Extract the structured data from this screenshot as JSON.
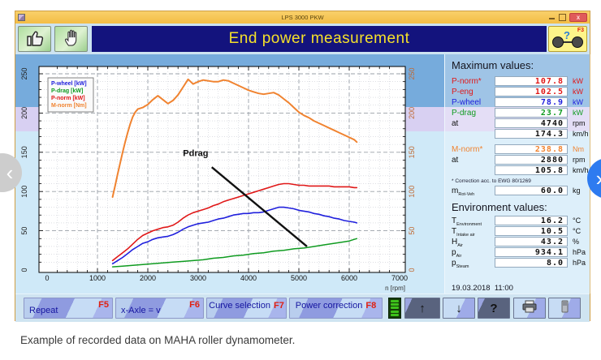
{
  "window": {
    "titlebar": {
      "title": "LPS 3000 PKW",
      "close_glyph": "x"
    },
    "header": {
      "title": "End power measurement",
      "f3_key": "F3",
      "f3_help_glyph": "?"
    }
  },
  "max_values": {
    "title": "Maximum values:",
    "rows": [
      {
        "label": "P-norm*",
        "value": "107.8",
        "unit": "kW",
        "color": "red"
      },
      {
        "label": "P-eng",
        "value": "102.5",
        "unit": "kW",
        "color": "red"
      },
      {
        "label": "P-wheel",
        "value": "78.9",
        "unit": "kW",
        "color": "blue"
      },
      {
        "label": "P-drag",
        "value": "23.7",
        "unit": "kW",
        "color": "green"
      },
      {
        "label": "at",
        "value": "4740",
        "unit": "rpm",
        "color": "black"
      },
      {
        "label": "",
        "value": "174.3",
        "unit": "km/h",
        "color": "black"
      },
      {
        "label": "M-norm*",
        "value": "238.8",
        "unit": "Nm",
        "color": "orange"
      },
      {
        "label": "at",
        "value": "2880",
        "unit": "rpm",
        "color": "black"
      },
      {
        "label": "",
        "value": "105.8",
        "unit": "km/h",
        "color": "black"
      },
      {
        "label": "m",
        "sub": "Rot-Veh",
        "value": "60.0",
        "unit": "kg",
        "color": "black"
      }
    ],
    "correction_note": "* Correction acc. to EWG 80/1269"
  },
  "environment": {
    "title": "Environment values:",
    "rows": [
      {
        "label": "T",
        "sub": "Environment",
        "value": "16.2",
        "unit": "°C",
        "color": "black"
      },
      {
        "label": "T",
        "sub": "Intake air",
        "value": "10.5",
        "unit": "°C",
        "color": "black"
      },
      {
        "label": "H",
        "sub": "Air",
        "value": "43.2",
        "unit": "%",
        "color": "black"
      },
      {
        "label": "p",
        "sub": "Air",
        "value": "934.1",
        "unit": "hPa",
        "color": "black"
      },
      {
        "label": "p",
        "sub": "Steam",
        "value": "8.0",
        "unit": "hPa",
        "color": "black"
      }
    ],
    "datetime": "19.03.2018  11:00"
  },
  "toolbar": {
    "buttons": [
      {
        "label": "Repeat",
        "fkey": "F5"
      },
      {
        "label": "x-Axle = v",
        "fkey": "F6"
      },
      {
        "label": "Curve selection",
        "fkey": "F7"
      },
      {
        "label": "Power correction",
        "fkey": "F8"
      }
    ],
    "nav": {
      "up": "↑",
      "down": "↓",
      "help": "?"
    }
  },
  "caption": "Example of recorded data on MAHA roller dynamometer.",
  "colors": {
    "band_top": "#76abdc",
    "band_mid": "#d8d0f2",
    "band_bottom": "#cfe9f8",
    "banner_bg": "#13137d",
    "banner_text": "#f5e12a",
    "p_wheel": "#2020dd",
    "p_drag": "#0f9b20",
    "p_norm": "#e01818",
    "m_norm": "#f08330",
    "right_axis_text": "#c06a35"
  },
  "chart_data": {
    "type": "line",
    "xlabel": "n [rpm]",
    "xlim": [
      0,
      7000
    ],
    "ylim": [
      0,
      250
    ],
    "x_ticks": [
      0,
      1000,
      2000,
      3000,
      4000,
      5000,
      6000,
      7000
    ],
    "y_ticks": [
      0,
      50,
      100,
      150,
      200,
      250
    ],
    "y2_ticks": [
      0,
      50,
      100,
      150,
      200,
      250
    ],
    "grid": true,
    "legend_position": "top-left",
    "annotation": {
      "text": "Pdrag",
      "text_at": [
        2950,
        145
      ],
      "line_from": [
        3270,
        131
      ],
      "line_to": [
        5160,
        30
      ]
    },
    "series": [
      {
        "name": "P-wheel [kW]",
        "color": "#2020dd",
        "width": 1.6,
        "points": [
          [
            1300,
            8
          ],
          [
            1400,
            12
          ],
          [
            1500,
            16
          ],
          [
            1600,
            21
          ],
          [
            1700,
            26
          ],
          [
            1800,
            30
          ],
          [
            1900,
            34
          ],
          [
            2000,
            36
          ],
          [
            2100,
            39
          ],
          [
            2200,
            41
          ],
          [
            2300,
            42
          ],
          [
            2400,
            43
          ],
          [
            2500,
            45
          ],
          [
            2600,
            48
          ],
          [
            2700,
            52
          ],
          [
            2800,
            55
          ],
          [
            2900,
            57
          ],
          [
            3000,
            59
          ],
          [
            3100,
            60
          ],
          [
            3200,
            61
          ],
          [
            3300,
            63
          ],
          [
            3400,
            65
          ],
          [
            3500,
            66
          ],
          [
            3600,
            68
          ],
          [
            3700,
            70
          ],
          [
            3800,
            71
          ],
          [
            3900,
            72
          ],
          [
            4000,
            72
          ],
          [
            4100,
            73
          ],
          [
            4200,
            73
          ],
          [
            4300,
            74
          ],
          [
            4400,
            76
          ],
          [
            4500,
            78
          ],
          [
            4600,
            80
          ],
          [
            4700,
            80
          ],
          [
            4800,
            79
          ],
          [
            4900,
            78
          ],
          [
            5000,
            76
          ],
          [
            5100,
            75
          ],
          [
            5200,
            74
          ],
          [
            5300,
            72
          ],
          [
            5400,
            71
          ],
          [
            5500,
            69
          ],
          [
            5600,
            68
          ],
          [
            5700,
            66
          ],
          [
            5800,
            65
          ],
          [
            5900,
            63
          ],
          [
            6000,
            62
          ],
          [
            6100,
            61
          ],
          [
            6150,
            60
          ]
        ]
      },
      {
        "name": "P-drag [kW]",
        "color": "#0f9b20",
        "width": 1.5,
        "points": [
          [
            1300,
            4
          ],
          [
            1500,
            5
          ],
          [
            1700,
            6
          ],
          [
            1900,
            7
          ],
          [
            2100,
            8
          ],
          [
            2300,
            9
          ],
          [
            2500,
            10
          ],
          [
            2700,
            11
          ],
          [
            2900,
            12
          ],
          [
            3100,
            13
          ],
          [
            3300,
            15
          ],
          [
            3500,
            16
          ],
          [
            3700,
            18
          ],
          [
            3900,
            19
          ],
          [
            4100,
            21
          ],
          [
            4300,
            22
          ],
          [
            4500,
            24
          ],
          [
            4700,
            25
          ],
          [
            4900,
            27
          ],
          [
            5100,
            28
          ],
          [
            5300,
            30
          ],
          [
            5500,
            32
          ],
          [
            5700,
            34
          ],
          [
            5900,
            36
          ],
          [
            6000,
            37
          ],
          [
            6100,
            39
          ],
          [
            6150,
            40
          ]
        ]
      },
      {
        "name": "P-norm [kW]",
        "color": "#e01818",
        "width": 1.6,
        "points": [
          [
            1300,
            12
          ],
          [
            1400,
            17
          ],
          [
            1500,
            22
          ],
          [
            1600,
            27
          ],
          [
            1700,
            33
          ],
          [
            1800,
            39
          ],
          [
            1900,
            44
          ],
          [
            2000,
            47
          ],
          [
            2100,
            50
          ],
          [
            2200,
            52
          ],
          [
            2300,
            54
          ],
          [
            2400,
            55
          ],
          [
            2500,
            57
          ],
          [
            2600,
            61
          ],
          [
            2700,
            66
          ],
          [
            2800,
            70
          ],
          [
            2900,
            73
          ],
          [
            3000,
            75
          ],
          [
            3100,
            77
          ],
          [
            3200,
            79
          ],
          [
            3300,
            82
          ],
          [
            3400,
            84
          ],
          [
            3500,
            87
          ],
          [
            3600,
            89
          ],
          [
            3700,
            91
          ],
          [
            3800,
            93
          ],
          [
            3900,
            95
          ],
          [
            4000,
            97
          ],
          [
            4100,
            99
          ],
          [
            4200,
            101
          ],
          [
            4300,
            103
          ],
          [
            4400,
            105
          ],
          [
            4500,
            107
          ],
          [
            4600,
            109
          ],
          [
            4700,
            110
          ],
          [
            4800,
            110
          ],
          [
            4900,
            109
          ],
          [
            5000,
            108
          ],
          [
            5100,
            108
          ],
          [
            5200,
            107
          ],
          [
            5300,
            107
          ],
          [
            5400,
            107
          ],
          [
            5500,
            107
          ],
          [
            5600,
            107
          ],
          [
            5700,
            106
          ],
          [
            5800,
            106
          ],
          [
            5900,
            106
          ],
          [
            6000,
            106
          ],
          [
            6100,
            105
          ],
          [
            6150,
            105
          ]
        ]
      },
      {
        "name": "M-norm [Nm]",
        "color": "#f08330",
        "width": 2,
        "axis": "right",
        "points": [
          [
            1300,
            93
          ],
          [
            1350,
            107
          ],
          [
            1400,
            122
          ],
          [
            1450,
            136
          ],
          [
            1500,
            150
          ],
          [
            1550,
            163
          ],
          [
            1600,
            175
          ],
          [
            1650,
            186
          ],
          [
            1700,
            195
          ],
          [
            1750,
            201
          ],
          [
            1800,
            205
          ],
          [
            1900,
            207
          ],
          [
            2000,
            211
          ],
          [
            2100,
            217
          ],
          [
            2200,
            222
          ],
          [
            2300,
            217
          ],
          [
            2400,
            212
          ],
          [
            2500,
            216
          ],
          [
            2600,
            223
          ],
          [
            2700,
            233
          ],
          [
            2800,
            243
          ],
          [
            2850,
            240
          ],
          [
            2900,
            237
          ],
          [
            3000,
            240
          ],
          [
            3100,
            242
          ],
          [
            3200,
            241
          ],
          [
            3300,
            240
          ],
          [
            3400,
            240
          ],
          [
            3500,
            242
          ],
          [
            3600,
            241
          ],
          [
            3700,
            238
          ],
          [
            3800,
            235
          ],
          [
            3900,
            232
          ],
          [
            4000,
            229
          ],
          [
            4100,
            227
          ],
          [
            4200,
            225
          ],
          [
            4300,
            224
          ],
          [
            4400,
            225
          ],
          [
            4500,
            226
          ],
          [
            4600,
            223
          ],
          [
            4700,
            218
          ],
          [
            4800,
            213
          ],
          [
            4900,
            207
          ],
          [
            5000,
            201
          ],
          [
            5100,
            197
          ],
          [
            5200,
            194
          ],
          [
            5300,
            190
          ],
          [
            5400,
            187
          ],
          [
            5500,
            184
          ],
          [
            5600,
            181
          ],
          [
            5700,
            178
          ],
          [
            5800,
            175
          ],
          [
            5900,
            172
          ],
          [
            6000,
            169
          ],
          [
            6100,
            166
          ],
          [
            6150,
            163
          ]
        ]
      }
    ]
  }
}
